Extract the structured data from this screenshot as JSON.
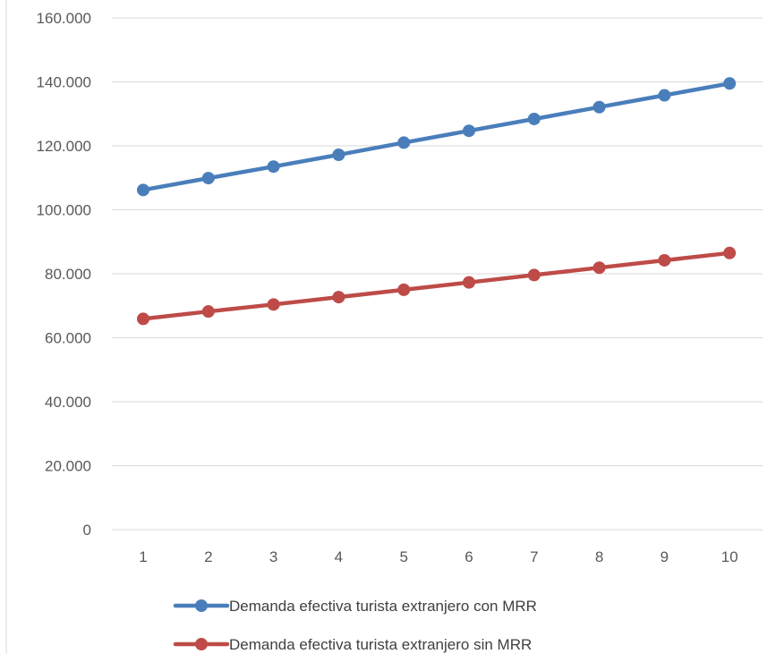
{
  "chart_data": {
    "type": "line",
    "x": [
      1,
      2,
      3,
      4,
      5,
      6,
      7,
      8,
      9,
      10
    ],
    "series": [
      {
        "name": "Demanda efectiva turista extranjero con MRR",
        "values": [
          106200,
          109900,
          113500,
          117200,
          121000,
          124700,
          128400,
          132100,
          135800,
          139500
        ],
        "color": "#4a7ebb"
      },
      {
        "name": "Demanda efectiva turista extranjero sin MRR",
        "values": [
          65900,
          68200,
          70400,
          72700,
          75000,
          77300,
          79600,
          81900,
          84200,
          86500
        ],
        "color": "#be4b48"
      }
    ],
    "ylim": [
      0,
      160000
    ],
    "yticks": [
      0,
      20000,
      40000,
      60000,
      80000,
      100000,
      120000,
      140000,
      160000
    ],
    "ytick_labels": [
      "0",
      "20.000",
      "40.000",
      "60.000",
      "80.000",
      "100.000",
      "120.000",
      "140.000",
      "160.000"
    ],
    "xtick_labels": [
      "1",
      "2",
      "3",
      "4",
      "5",
      "6",
      "7",
      "8",
      "9",
      "10"
    ],
    "grid": "horizontal",
    "legend_position": "bottom",
    "title": "",
    "xlabel": "",
    "ylabel": ""
  }
}
